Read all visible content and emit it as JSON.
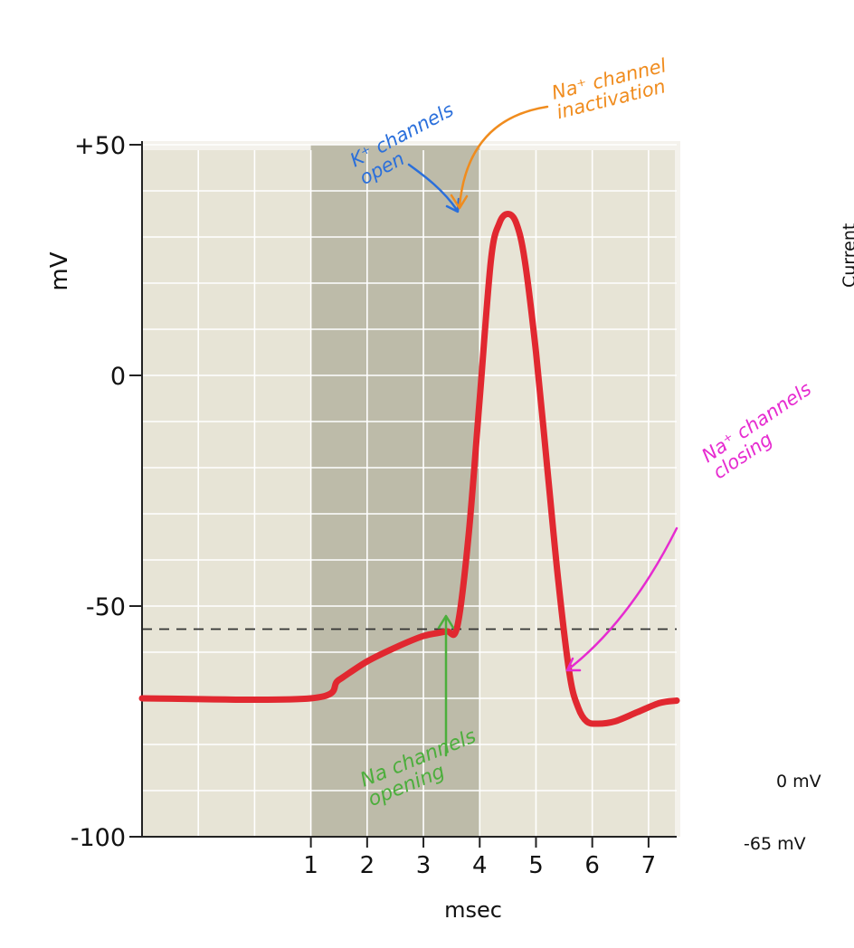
{
  "chart_data": {
    "type": "line",
    "ylabel": "mV",
    "xlabel": "msec",
    "xlim": [
      -2.0,
      7.5
    ],
    "ylim": [
      -100,
      50
    ],
    "y_ticks": [
      {
        "value": 50,
        "label": "+50"
      },
      {
        "value": 0,
        "label": "0"
      },
      {
        "value": -50,
        "label": "-50"
      },
      {
        "value": -100,
        "label": "-100"
      }
    ],
    "x_ticks": [
      {
        "value": 1,
        "label": "1"
      },
      {
        "value": 2,
        "label": "2"
      },
      {
        "value": 3,
        "label": "3"
      },
      {
        "value": 4,
        "label": "4"
      },
      {
        "value": 5,
        "label": "5"
      },
      {
        "value": 6,
        "label": "6"
      },
      {
        "value": 7,
        "label": "7"
      }
    ],
    "grid": true,
    "shaded_region": [
      1,
      4
    ],
    "threshold_mV": -55,
    "series": [
      {
        "color": "#e12830",
        "x": [
          -2.0,
          1.0,
          1.5,
          2.0,
          2.5,
          3.0,
          3.4,
          3.6,
          3.8,
          4.0,
          4.2,
          4.35,
          4.5,
          4.65,
          4.8,
          5.0,
          5.2,
          5.4,
          5.6,
          5.75,
          5.9,
          6.1,
          6.4,
          6.8,
          7.2,
          7.5
        ],
        "y": [
          -70,
          -70,
          -66,
          -62,
          -59,
          -56.5,
          -55.5,
          -54.5,
          -35,
          -5,
          25,
          33,
          35,
          33,
          25,
          5,
          -20,
          -45,
          -65,
          -72,
          -75,
          -75.5,
          -75,
          -73,
          -71,
          -70.5
        ]
      }
    ],
    "annotations": [
      {
        "text": "K⁺ channels open",
        "color": "#2a6fdb"
      },
      {
        "text": "Na⁺ channel inactivation",
        "color": "#f08c1e"
      },
      {
        "text": "Na channels opening",
        "color": "#4cae3c"
      },
      {
        "text": "Na⁺ channels closing",
        "color": "#e62bd0"
      }
    ]
  },
  "side_labels": {
    "current": "Current",
    "zero": "0 mV",
    "neg65": "-65 mV"
  }
}
